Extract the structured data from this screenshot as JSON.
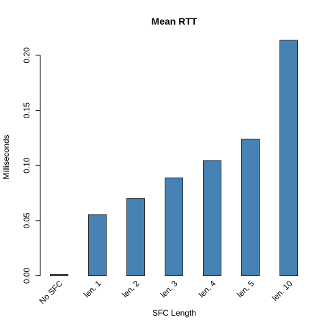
{
  "chart_data": {
    "type": "bar",
    "title": "Mean RTT",
    "xlabel": "SFC Length",
    "ylabel": "Milliseconds",
    "categories": [
      "No SFC",
      "len. 1",
      "len. 2",
      "len. 3",
      "len. 4",
      "len. 5",
      "len. 10"
    ],
    "values": [
      0.0013,
      0.0555,
      0.07,
      0.0888,
      0.1045,
      0.124,
      0.2136
    ],
    "ylim": [
      0,
      0.2136
    ],
    "yticks": [
      0.0,
      0.05,
      0.1,
      0.15,
      0.2
    ],
    "ytick_labels": [
      "0.00",
      "0.05",
      "0.10",
      "0.15",
      "0.20"
    ],
    "grid": false,
    "bar_color": "#4682b4"
  }
}
